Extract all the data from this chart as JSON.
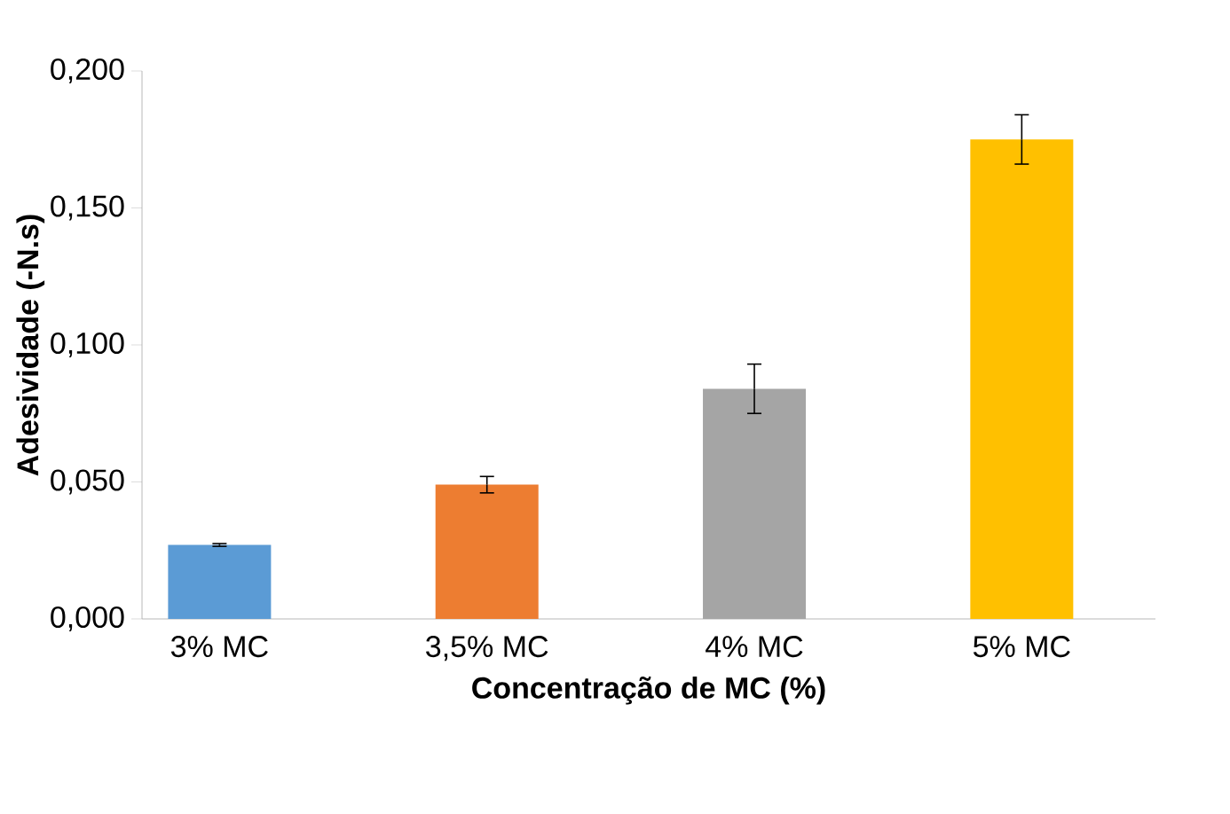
{
  "chart_data": {
    "type": "bar",
    "xlabel": "Concentração de MC (%)",
    "ylabel": "Adesividade (-N.s)",
    "categories": [
      "3% MC",
      "3,5% MC",
      "4% MC",
      "5% MC"
    ],
    "values": [
      0.027,
      0.049,
      0.084,
      0.175
    ],
    "errors": [
      0.0005,
      0.003,
      0.009,
      0.009
    ],
    "colors": [
      "#5b9bd5",
      "#ed7d31",
      "#a5a5a5",
      "#ffc000"
    ],
    "ylim": [
      0,
      0.2
    ],
    "yticks": [
      {
        "value": 0,
        "label": "0,000"
      },
      {
        "value": 0.05,
        "label": "0,050"
      },
      {
        "value": 0.1,
        "label": "0,100"
      },
      {
        "value": 0.15,
        "label": "0,150"
      },
      {
        "value": 0.2,
        "label": "0,200"
      }
    ],
    "grid": false
  }
}
